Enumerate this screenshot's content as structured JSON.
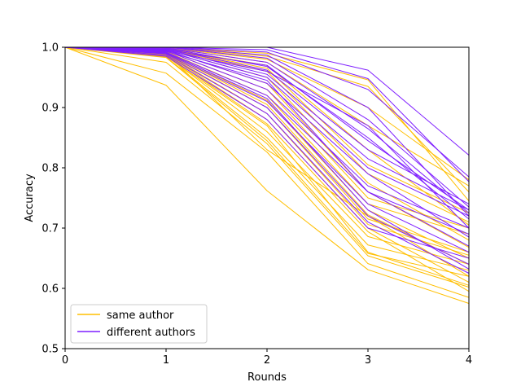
{
  "chart_data": {
    "type": "line",
    "title": "",
    "xlabel": "Rounds",
    "ylabel": "Accuracy",
    "xlim": [
      0,
      4
    ],
    "ylim": [
      0.5,
      1.0
    ],
    "x": [
      0,
      1,
      2,
      3,
      4
    ],
    "x_ticks": [
      "0",
      "1",
      "2",
      "3",
      "4"
    ],
    "y_ticks": [
      "0.5",
      "0.6",
      "0.7",
      "0.8",
      "0.9",
      "1.0"
    ],
    "grid": false,
    "legend_position": "bottom-left",
    "legend": [
      {
        "label": "same author",
        "color": "#ffbf00"
      },
      {
        "label": "different authors",
        "color": "#7f1fff"
      }
    ],
    "series": [
      {
        "name": "same author",
        "color": "#ffbf00",
        "lines": [
          [
            1.0,
            0.937,
            0.762,
            0.631,
            0.575
          ],
          [
            1.0,
            0.957,
            0.826,
            0.641,
            0.585
          ],
          [
            1.0,
            0.975,
            0.84,
            0.654,
            0.602
          ],
          [
            1.0,
            0.983,
            0.845,
            0.658,
            0.62
          ],
          [
            1.0,
            0.984,
            0.85,
            0.672,
            0.63
          ],
          [
            1.0,
            0.986,
            0.86,
            0.686,
            0.64
          ],
          [
            1.0,
            0.987,
            0.873,
            0.694,
            0.595
          ],
          [
            1.0,
            0.988,
            0.88,
            0.7,
            0.61
          ],
          [
            1.0,
            0.989,
            0.89,
            0.706,
            0.655
          ],
          [
            1.0,
            0.99,
            0.9,
            0.715,
            0.66
          ],
          [
            1.0,
            0.991,
            0.905,
            0.722,
            0.64
          ],
          [
            1.0,
            0.992,
            0.912,
            0.73,
            0.65
          ],
          [
            1.0,
            0.993,
            0.92,
            0.74,
            0.69
          ],
          [
            1.0,
            0.994,
            0.93,
            0.75,
            0.7
          ],
          [
            1.0,
            0.995,
            0.94,
            0.76,
            0.668
          ],
          [
            1.0,
            0.996,
            0.95,
            0.775,
            0.68
          ],
          [
            1.0,
            0.997,
            0.96,
            0.79,
            0.71
          ],
          [
            1.0,
            0.998,
            0.965,
            0.805,
            0.725
          ],
          [
            1.0,
            0.998,
            0.97,
            0.83,
            0.705
          ],
          [
            1.0,
            0.999,
            0.975,
            0.87,
            0.77
          ],
          [
            1.0,
            0.999,
            0.98,
            0.9,
            0.78
          ],
          [
            1.0,
            1.0,
            0.985,
            0.935,
            0.76
          ],
          [
            1.0,
            1.0,
            0.99,
            0.946,
            0.745
          ],
          [
            1.0,
            0.985,
            0.87,
            0.66,
            0.605
          ],
          [
            1.0,
            0.99,
            0.83,
            0.72,
            0.62
          ]
        ]
      },
      {
        "name": "different authors",
        "color": "#7f1fff",
        "lines": [
          [
            1.0,
            0.985,
            0.88,
            0.7,
            0.65
          ],
          [
            1.0,
            0.987,
            0.89,
            0.71,
            0.625
          ],
          [
            1.0,
            0.989,
            0.9,
            0.72,
            0.64
          ],
          [
            1.0,
            0.99,
            0.91,
            0.74,
            0.66
          ],
          [
            1.0,
            0.992,
            0.92,
            0.76,
            0.67
          ],
          [
            1.0,
            0.994,
            0.93,
            0.77,
            0.7
          ],
          [
            1.0,
            0.995,
            0.94,
            0.79,
            0.685
          ],
          [
            1.0,
            0.996,
            0.95,
            0.8,
            0.72
          ],
          [
            1.0,
            0.997,
            0.955,
            0.815,
            0.73
          ],
          [
            1.0,
            0.998,
            0.962,
            0.83,
            0.74
          ],
          [
            1.0,
            0.999,
            0.968,
            0.85,
            0.715
          ],
          [
            1.0,
            0.999,
            0.975,
            0.865,
            0.725
          ],
          [
            1.0,
            1.0,
            0.982,
            0.88,
            0.735
          ],
          [
            1.0,
            1.0,
            0.987,
            0.9,
            0.72
          ],
          [
            1.0,
            1.0,
            0.992,
            0.93,
            0.785
          ],
          [
            1.0,
            1.0,
            0.996,
            0.948,
            0.777
          ],
          [
            1.0,
            1.0,
            1.0,
            0.962,
            0.821
          ],
          [
            1.0,
            0.994,
            0.96,
            0.87,
            0.7
          ],
          [
            1.0,
            0.996,
            0.97,
            0.845,
            0.73
          ],
          [
            1.0,
            0.993,
            0.945,
            0.76,
            0.69
          ],
          [
            1.0,
            0.991,
            0.915,
            0.73,
            0.632
          ]
        ]
      }
    ]
  }
}
